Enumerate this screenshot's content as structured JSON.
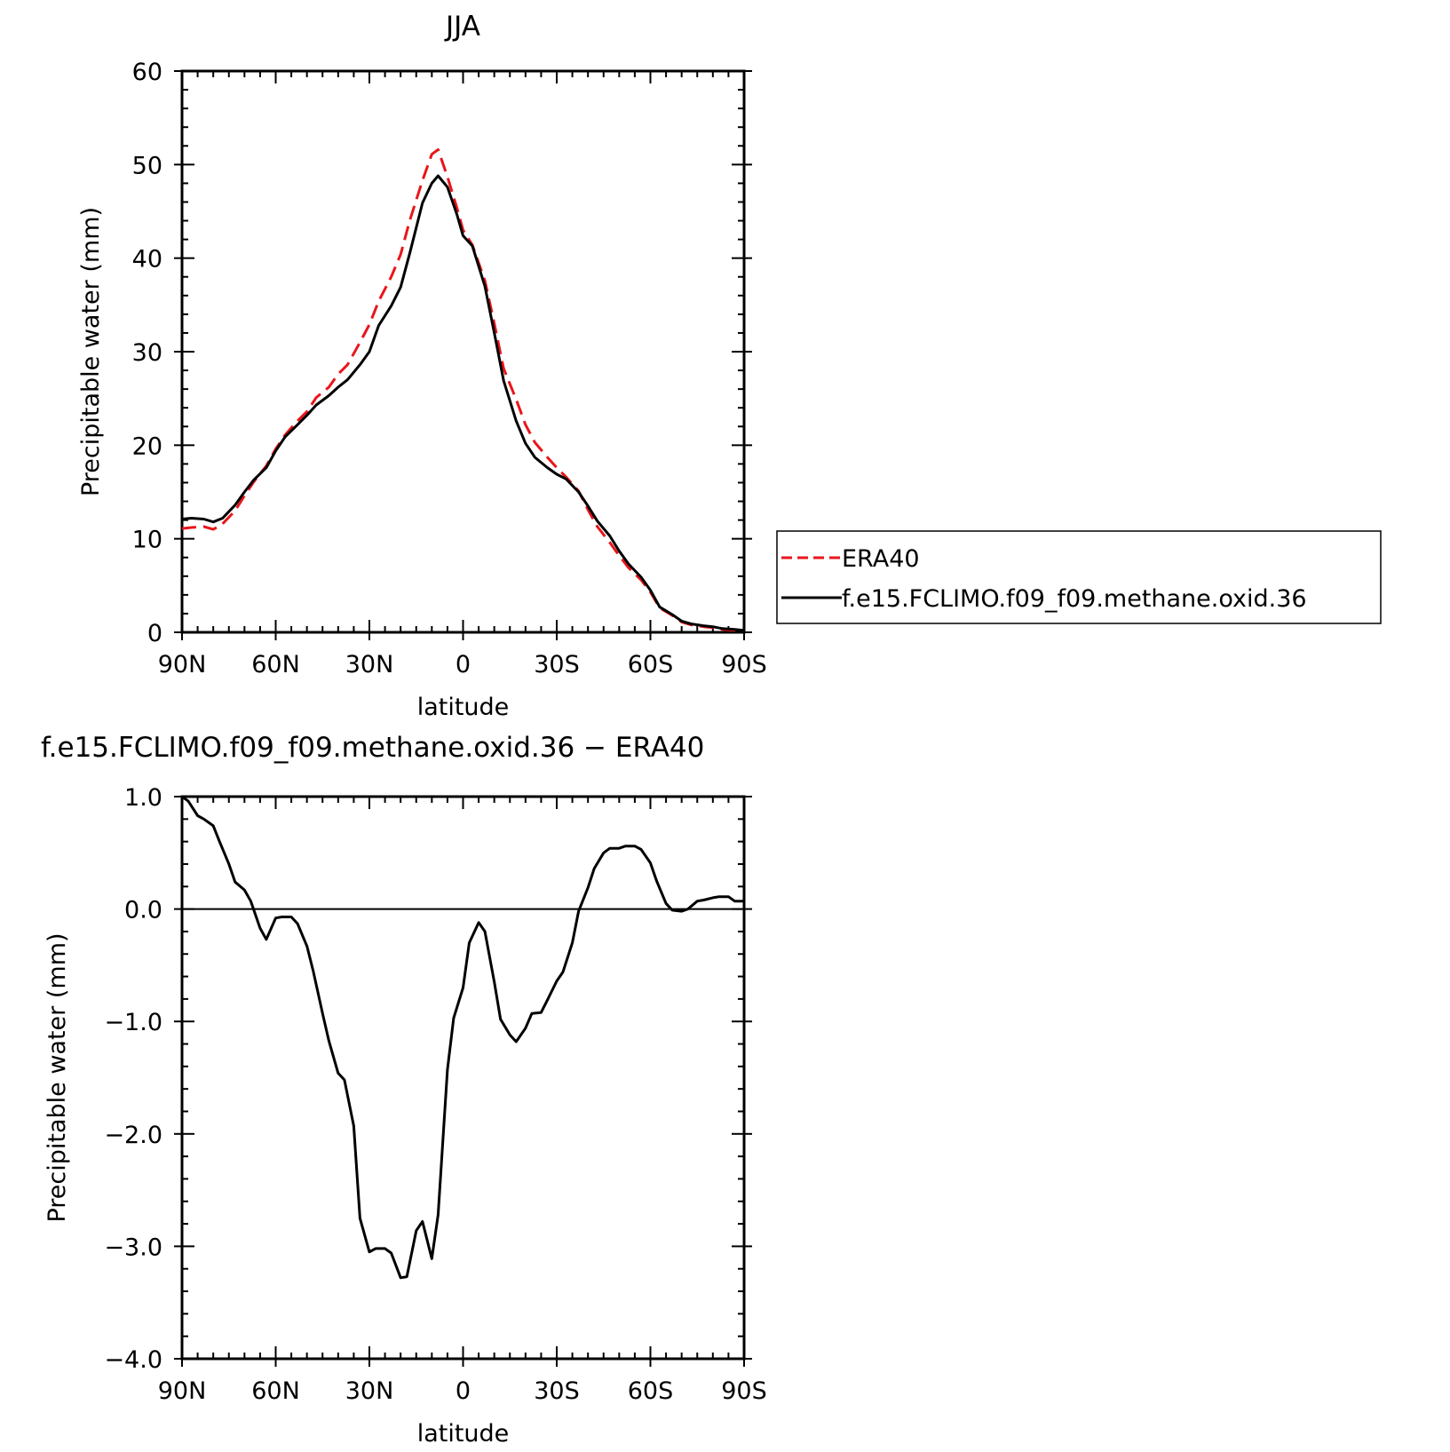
{
  "chart_data": [
    {
      "type": "line",
      "title": "JJA",
      "xlabel": "latitude",
      "ylabel": "Precipitable water (mm)",
      "xlim": [
        90,
        -90
      ],
      "ylim": [
        0,
        60
      ],
      "x_ticks": [
        {
          "value": 90,
          "label": "90N"
        },
        {
          "value": 60,
          "label": "60N"
        },
        {
          "value": 30,
          "label": "30N"
        },
        {
          "value": 0,
          "label": "0"
        },
        {
          "value": -30,
          "label": "30S"
        },
        {
          "value": -60,
          "label": "60S"
        },
        {
          "value": -90,
          "label": "90S"
        }
      ],
      "y_ticks": [
        {
          "value": 0,
          "label": "0"
        },
        {
          "value": 10,
          "label": "10"
        },
        {
          "value": 20,
          "label": "20"
        },
        {
          "value": 30,
          "label": "30"
        },
        {
          "value": 40,
          "label": "40"
        },
        {
          "value": 50,
          "label": "50"
        },
        {
          "value": 60,
          "label": "60"
        }
      ],
      "grid": false,
      "legend_position": "right",
      "series": [
        {
          "name": "ERA40",
          "color": "#e8161b",
          "dash": "dashed",
          "x": [
            90,
            87,
            83,
            80,
            77,
            73,
            70,
            67,
            63,
            60,
            57,
            53,
            50,
            47,
            43,
            40,
            37,
            33,
            30,
            27,
            23,
            20,
            17,
            13,
            10,
            8,
            5,
            2,
            0,
            -3,
            -7,
            -10,
            -13,
            -17,
            -20,
            -23,
            -27,
            -30,
            -33,
            -37,
            -40,
            -43,
            -47,
            -50,
            -53,
            -57,
            -60,
            -63,
            -67,
            -70,
            -73,
            -77,
            -80,
            -83,
            -87,
            -90
          ],
          "y": [
            11.1,
            11.2,
            11.3,
            11.0,
            11.6,
            13.0,
            14.6,
            16.1,
            17.8,
            19.6,
            21.1,
            22.6,
            23.6,
            25.1,
            26.2,
            27.6,
            28.6,
            31.0,
            32.9,
            35.4,
            38.0,
            40.4,
            44.1,
            48.3,
            51.1,
            51.6,
            48.7,
            45.4,
            43.0,
            41.4,
            37.6,
            33.0,
            28.2,
            24.9,
            22.2,
            20.3,
            18.7,
            17.6,
            16.6,
            15.1,
            13.1,
            11.3,
            9.6,
            8.2,
            6.9,
            5.6,
            4.3,
            2.6,
            1.8,
            1.1,
            0.8,
            0.6,
            0.5,
            0.3,
            0.2,
            0.2
          ]
        },
        {
          "name": "f.e15.FCLIMO.f09_f09.methane.oxid.36",
          "color": "#000000",
          "dash": "solid",
          "x": [
            90,
            87,
            83,
            80,
            77,
            73,
            70,
            67,
            63,
            60,
            57,
            53,
            50,
            47,
            43,
            40,
            37,
            33,
            30,
            27,
            23,
            20,
            17,
            13,
            10,
            8,
            5,
            2,
            0,
            -3,
            -7,
            -10,
            -13,
            -17,
            -20,
            -23,
            -27,
            -30,
            -33,
            -37,
            -40,
            -43,
            -47,
            -50,
            -53,
            -57,
            -60,
            -63,
            -67,
            -70,
            -73,
            -77,
            -80,
            -83,
            -87,
            -90
          ],
          "y": [
            12.1,
            12.2,
            12.1,
            11.8,
            12.2,
            13.6,
            15.0,
            16.3,
            17.6,
            19.4,
            20.9,
            22.2,
            23.2,
            24.3,
            25.3,
            26.2,
            27.0,
            28.6,
            30.0,
            32.8,
            34.9,
            36.9,
            40.6,
            45.9,
            48.0,
            48.8,
            47.6,
            44.7,
            42.4,
            41.3,
            37.0,
            32.0,
            26.9,
            22.6,
            20.2,
            18.7,
            17.6,
            16.9,
            16.4,
            15.0,
            13.5,
            11.9,
            10.3,
            8.7,
            7.3,
            5.9,
            4.5,
            2.7,
            1.9,
            1.2,
            0.9,
            0.7,
            0.6,
            0.4,
            0.3,
            0.2
          ]
        }
      ]
    },
    {
      "type": "line",
      "title": "f.e15.FCLIMO.f09_f09.methane.oxid.36 − ERA40",
      "xlabel": "latitude",
      "ylabel": "Precipitable water (mm)",
      "xlim": [
        90,
        -90
      ],
      "ylim": [
        -4.0,
        1.0
      ],
      "x_ticks": [
        {
          "value": 90,
          "label": "90N"
        },
        {
          "value": 60,
          "label": "60N"
        },
        {
          "value": 30,
          "label": "30N"
        },
        {
          "value": 0,
          "label": "0"
        },
        {
          "value": -30,
          "label": "30S"
        },
        {
          "value": -60,
          "label": "60S"
        },
        {
          "value": -90,
          "label": "90S"
        }
      ],
      "y_ticks": [
        {
          "value": 1.0,
          "label": "1.0"
        },
        {
          "value": 0.0,
          "label": "0.0"
        },
        {
          "value": -1.0,
          "label": "−1.0"
        },
        {
          "value": -2.0,
          "label": "−2.0"
        },
        {
          "value": -3.0,
          "label": "−3.0"
        },
        {
          "value": -4.0,
          "label": "−4.0"
        }
      ],
      "grid": false,
      "series": [
        {
          "color": "#000000",
          "dash": "solid",
          "x": [
            90,
            88,
            85,
            83,
            80,
            78,
            75,
            73,
            70,
            68,
            65,
            63,
            60,
            58,
            55,
            53,
            50,
            48,
            45,
            43,
            40,
            38,
            35,
            33,
            30,
            28,
            25,
            23,
            20,
            18,
            15,
            13,
            10,
            8,
            5,
            3,
            0,
            -2,
            -5,
            -7,
            -10,
            -12,
            -15,
            -17,
            -20,
            -22,
            -25,
            -27,
            -30,
            -32,
            -35,
            -37,
            -40,
            -42,
            -45,
            -47,
            -50,
            -52,
            -55,
            -57,
            -60,
            -62,
            -65,
            -67,
            -70,
            -72,
            -75,
            -77,
            -80,
            -82,
            -85,
            -87,
            -90
          ],
          "y": [
            1.0,
            0.96,
            0.83,
            0.8,
            0.74,
            0.6,
            0.4,
            0.24,
            0.17,
            0.07,
            -0.17,
            -0.27,
            -0.08,
            -0.07,
            -0.07,
            -0.13,
            -0.33,
            -0.55,
            -0.93,
            -1.17,
            -1.46,
            -1.52,
            -1.93,
            -2.75,
            -3.05,
            -3.02,
            -3.02,
            -3.06,
            -3.28,
            -3.27,
            -2.86,
            -2.78,
            -3.11,
            -2.72,
            -1.43,
            -0.97,
            -0.7,
            -0.3,
            -0.12,
            -0.2,
            -0.65,
            -0.98,
            -1.12,
            -1.18,
            -1.06,
            -0.93,
            -0.92,
            -0.81,
            -0.64,
            -0.56,
            -0.3,
            -0.02,
            0.19,
            0.36,
            0.5,
            0.54,
            0.54,
            0.56,
            0.56,
            0.53,
            0.41,
            0.25,
            0.05,
            -0.01,
            -0.02,
            0.0,
            0.07,
            0.08,
            0.1,
            0.11,
            0.11,
            0.07,
            0.07
          ]
        }
      ]
    }
  ]
}
